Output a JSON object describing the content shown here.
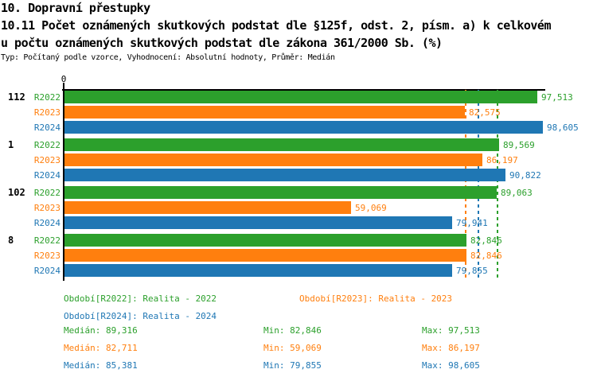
{
  "header": {
    "line1": "10. Dopravní přestupky",
    "line2": "10.11 Počet oznámených skutkových podstat dle §125f, odst. 2, písm. a) k celkovém",
    "line3": "u počtu oznámených skutkových podstat dle zákona 361/2000 Sb. (%)",
    "meta": "Typ: Počítaný podle vzorce, Vyhodnocení: Absolutní hodnoty, Průměr: Medián"
  },
  "chart_data": {
    "type": "bar",
    "orientation": "horizontal",
    "axis": {
      "origin_label": "0",
      "min": 0,
      "max": 98605
    },
    "categories": [
      "112",
      "1",
      "102",
      "8"
    ],
    "series": [
      {
        "name": "R2022",
        "color": "#2ca02c",
        "legend_label": "Období[R2022]: Realita - 2022",
        "values": [
          97513,
          89569,
          89063,
          82846
        ],
        "value_labels": [
          "97,513",
          "89,569",
          "89,063",
          "82,846"
        ],
        "median": 89316,
        "median_label": "Medián: 89,316",
        "min_label": "Min: 82,846",
        "max_label": "Max: 97,513"
      },
      {
        "name": "R2023",
        "color": "#ff7f0e",
        "legend_label": "Období[R2023]: Realita - 2023",
        "values": [
          82575,
          86197,
          59069,
          82846
        ],
        "value_labels": [
          "82,575",
          "86,197",
          "59,069",
          "82,846"
        ],
        "median": 82711,
        "median_label": "Medián: 82,711",
        "min_label": "Min: 59,069",
        "max_label": "Max: 86,197"
      },
      {
        "name": "R2024",
        "color": "#1f77b4",
        "legend_label": "Období[R2024]: Realita - 2024",
        "values": [
          98605,
          90822,
          79941,
          79855
        ],
        "value_labels": [
          "98,605",
          "90,822",
          "79,941",
          "79,855"
        ],
        "median": 85381,
        "median_label": "Medián: 85,381",
        "min_label": "Min: 79,855",
        "max_label": "Max: 98,605"
      }
    ]
  }
}
